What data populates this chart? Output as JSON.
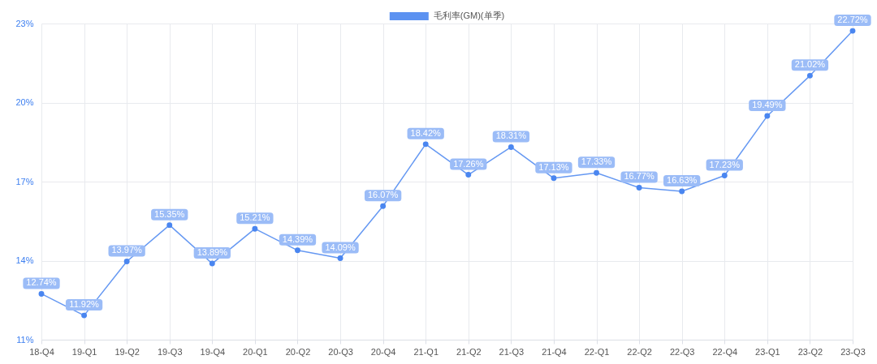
{
  "chart_data": {
    "type": "line",
    "categories": [
      "18-Q4",
      "19-Q1",
      "19-Q2",
      "19-Q3",
      "19-Q4",
      "20-Q1",
      "20-Q2",
      "20-Q3",
      "20-Q4",
      "21-Q1",
      "21-Q2",
      "21-Q3",
      "21-Q4",
      "22-Q1",
      "22-Q2",
      "22-Q3",
      "22-Q4",
      "23-Q1",
      "23-Q2",
      "23-Q3"
    ],
    "series": [
      {
        "name": "毛利率(GM)(单季)",
        "color": "#4a86f0",
        "values": [
          12.74,
          11.92,
          13.97,
          15.35,
          13.89,
          15.21,
          14.39,
          14.09,
          16.07,
          18.42,
          17.26,
          18.31,
          17.13,
          17.33,
          16.77,
          16.63,
          17.23,
          19.49,
          21.02,
          22.72
        ],
        "value_labels": [
          "12.74%",
          "11.92%",
          "13.97%",
          "15.35%",
          "13.89%",
          "15.21%",
          "14.39%",
          "14.09%",
          "16.07%",
          "18.42%",
          "17.26%",
          "18.31%",
          "17.13%",
          "17.33%",
          "16.77%",
          "16.63%",
          "17.23%",
          "19.49%",
          "21.02%",
          "22.72%"
        ]
      }
    ],
    "ylim": [
      11,
      23
    ],
    "yticks": [
      {
        "value": 11,
        "label": "11%"
      },
      {
        "value": 14,
        "label": "14%"
      },
      {
        "value": 17,
        "label": "17%"
      },
      {
        "value": 20,
        "label": "20%"
      },
      {
        "value": 23,
        "label": "23%"
      }
    ],
    "grid": true,
    "legend": "top",
    "marker": "circle",
    "line_style": "solid"
  }
}
